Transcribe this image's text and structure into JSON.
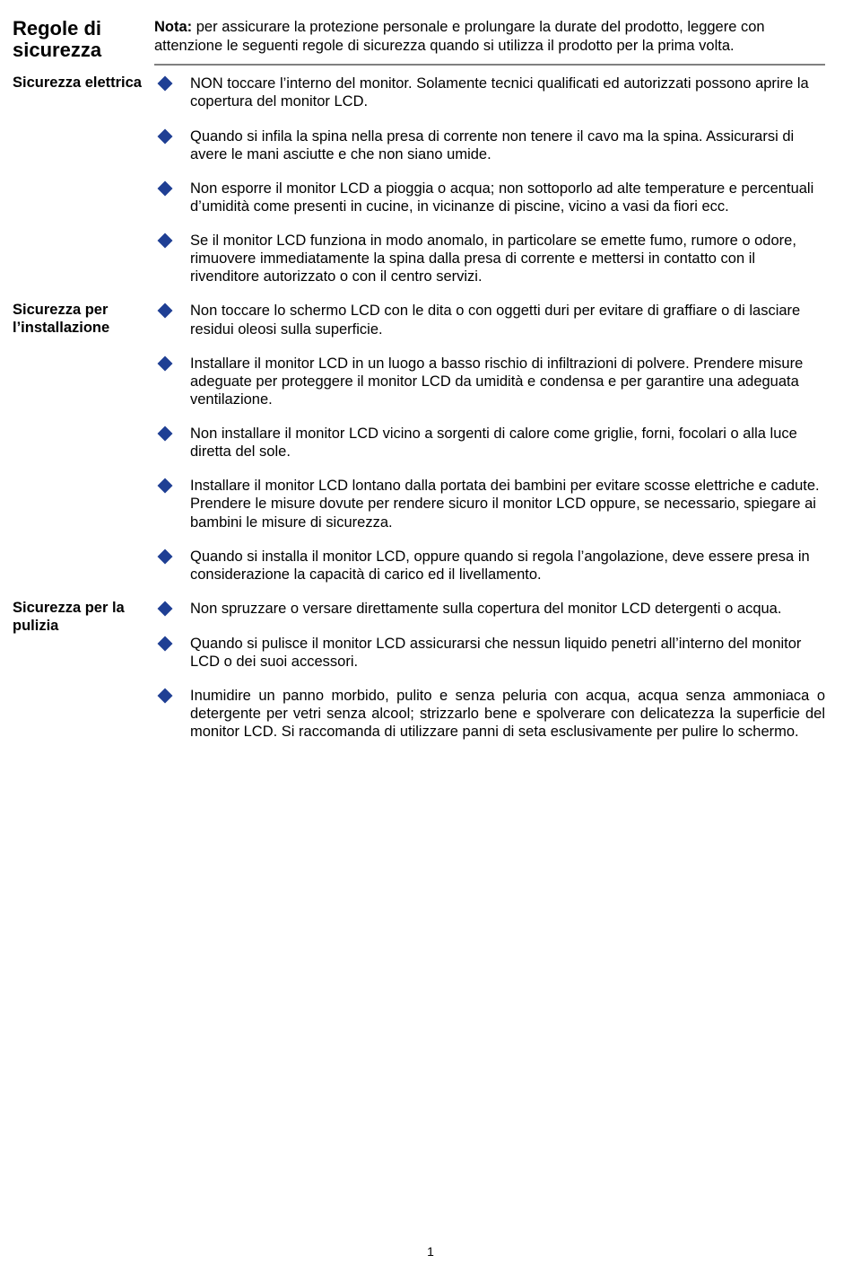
{
  "colors": {
    "text": "#000000",
    "bullet": "#1f3f94",
    "hr": "#808080",
    "background": "#ffffff"
  },
  "title": "Regole di sicurezza",
  "note_label": "Nota:",
  "note_text": " per assicurare la protezione personale e prolungare la durate del prodotto, leggere con attenzione le seguenti regole di sicurezza quando si utilizza il prodotto per la prima volta.",
  "sections": [
    {
      "label": "Sicurezza elettrica",
      "items": [
        "NON toccare l’interno del monitor. Solamente tecnici qualificati ed autorizzati possono aprire la copertura del monitor LCD.",
        "Quando si infila la spina nella presa di corrente non tenere il cavo ma la spina. Assicurarsi di avere le mani asciutte e che non siano umide.",
        "Non esporre il monitor LCD a pioggia o acqua; non sottoporlo ad alte temperature e percentuali d’umidità come presenti in cucine, in vicinanze di piscine, vicino a vasi da fiori ecc.",
        "Se il monitor LCD funziona in modo anomalo, in particolare se emette fumo, rumore o odore, rimuovere immediatamente la spina dalla presa di corrente e mettersi in contatto con il rivenditore autorizzato o con il centro servizi."
      ]
    },
    {
      "label": "Sicurezza per l’installazione",
      "items": [
        "Non toccare lo schermo LCD con le dita o con oggetti duri per evitare di graffiare o di lasciare residui oleosi sulla superficie.",
        "Installare il monitor LCD in un luogo a basso rischio di infiltrazioni di polvere. Prendere misure adeguate per proteggere il monitor LCD da umidità e condensa e per garantire una adeguata ventilazione.",
        "Non installare il monitor LCD vicino a sorgenti di calore come griglie, forni, focolari o alla luce diretta del sole.",
        "Installare il monitor LCD lontano dalla portata dei bambini per evitare scosse elettriche e cadute. Prendere le misure dovute per rendere sicuro il monitor LCD oppure, se necessario, spiegare ai bambini le misure di sicurezza.",
        "Quando si installa il monitor LCD, oppure quando si regola l’angolazione, deve essere presa in considerazione la capacità di carico ed il livellamento."
      ]
    },
    {
      "label": "Sicurezza per la pulizia",
      "items": [
        "Non spruzzare o versare direttamente sulla copertura del monitor LCD detergenti o acqua.",
        "Quando si pulisce il monitor LCD assicurarsi che nessun liquido penetri all’interno del monitor LCD o dei suoi accessori.",
        "Inumidire un panno morbido, pulito e senza peluria con acqua, acqua senza ammoniaca o detergente per vetri senza alcool; strizzarlo bene e spolverare con delicatezza la superficie del monitor LCD. Si raccomanda di utilizzare panni di seta esclusivamente per pulire lo schermo."
      ]
    }
  ],
  "justify_items": [
    [
      2,
      2
    ]
  ],
  "page_number": "1"
}
